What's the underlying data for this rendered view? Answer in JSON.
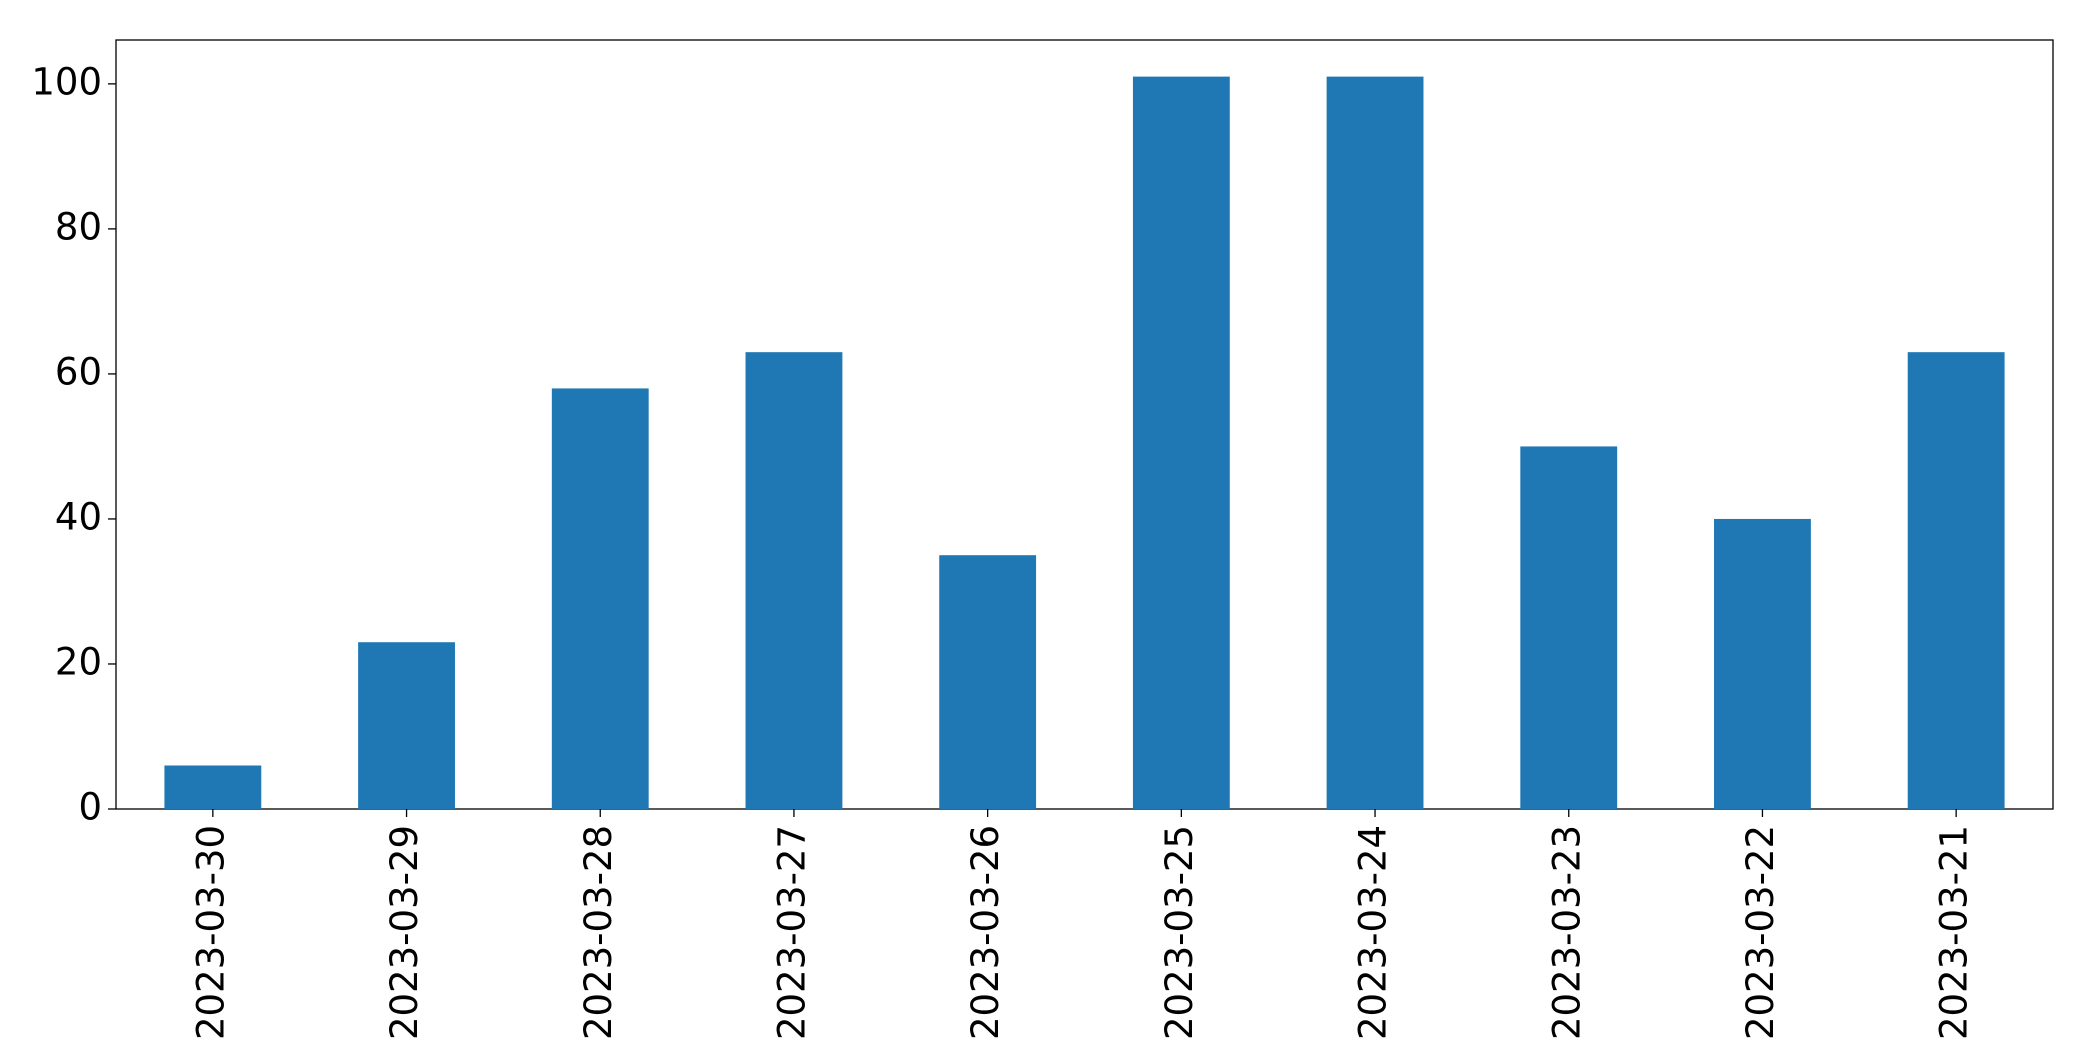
{
  "chart_data": {
    "type": "bar",
    "categories": [
      "2023-03-30",
      "2023-03-29",
      "2023-03-28",
      "2023-03-27",
      "2023-03-26",
      "2023-03-25",
      "2023-03-24",
      "2023-03-23",
      "2023-03-22",
      "2023-03-21"
    ],
    "values": [
      6,
      23,
      58,
      63,
      35,
      101,
      101,
      50,
      40,
      63
    ],
    "color": "#1f77b4",
    "ylim": [
      0,
      106.05
    ],
    "yticks": [
      0,
      20,
      40,
      60,
      80,
      100
    ],
    "grid": false
  }
}
